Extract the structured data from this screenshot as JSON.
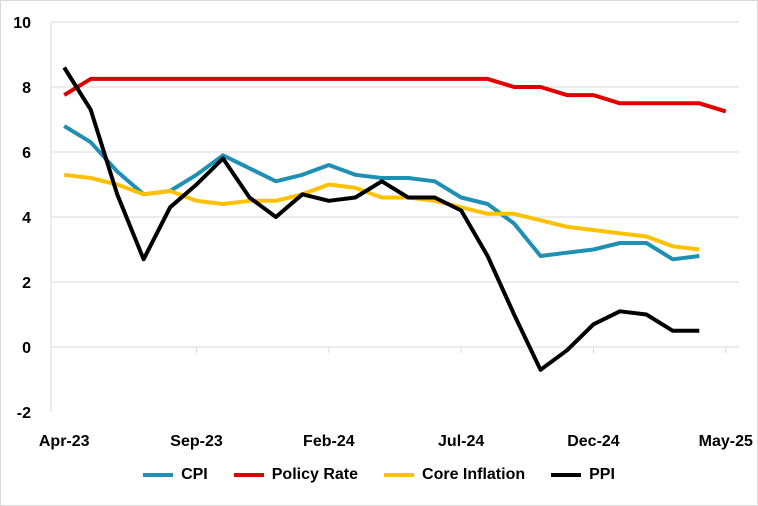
{
  "chart_data": {
    "type": "line",
    "title": "",
    "xlabel": "",
    "ylabel": "",
    "ylim": [
      -2,
      10
    ],
    "yticks": [
      -2,
      0,
      2,
      4,
      6,
      8,
      10
    ],
    "grid": true,
    "legend_position": "bottom",
    "x": [
      "Apr-23",
      "May-23",
      "Jun-23",
      "Jul-23",
      "Aug-23",
      "Sep-23",
      "Oct-23",
      "Nov-23",
      "Dec-23",
      "Jan-24",
      "Feb-24",
      "Mar-24",
      "Apr-24",
      "May-24",
      "Jun-24",
      "Jul-24",
      "Aug-24",
      "Sep-24",
      "Oct-24",
      "Nov-24",
      "Dec-24",
      "Jan-25",
      "Feb-25",
      "Mar-25",
      "Apr-25",
      "May-25"
    ],
    "x_tick_labels": [
      {
        "index": 0,
        "label": "Apr-23"
      },
      {
        "index": 5,
        "label": "Sep-23"
      },
      {
        "index": 10,
        "label": "Feb-24"
      },
      {
        "index": 15,
        "label": "Jul-24"
      },
      {
        "index": 20,
        "label": "Dec-24"
      },
      {
        "index": 25,
        "label": "May-25"
      }
    ],
    "series": [
      {
        "name": "CPI",
        "color": "#1f8fb4",
        "values": [
          6.8,
          6.3,
          5.4,
          4.7,
          4.8,
          5.3,
          5.9,
          5.5,
          5.1,
          5.3,
          5.6,
          5.3,
          5.2,
          5.2,
          5.1,
          4.6,
          4.4,
          3.8,
          2.8,
          2.9,
          3.0,
          3.2,
          3.2,
          2.7,
          2.8,
          null
        ]
      },
      {
        "name": "Policy Rate",
        "color": "#e00000",
        "values": [
          7.75,
          8.25,
          8.25,
          8.25,
          8.25,
          8.25,
          8.25,
          8.25,
          8.25,
          8.25,
          8.25,
          8.25,
          8.25,
          8.25,
          8.25,
          8.25,
          8.25,
          8.0,
          8.0,
          7.75,
          7.75,
          7.5,
          7.5,
          7.5,
          7.5,
          7.25
        ]
      },
      {
        "name": "Core Inflation",
        "color": "#ffc000",
        "values": [
          5.3,
          5.2,
          5.0,
          4.7,
          4.8,
          4.5,
          4.4,
          4.5,
          4.5,
          4.7,
          5.0,
          4.9,
          4.6,
          4.6,
          4.5,
          4.3,
          4.1,
          4.1,
          3.9,
          3.7,
          3.6,
          3.5,
          3.4,
          3.1,
          3.0,
          null
        ]
      },
      {
        "name": "PPI",
        "color": "#000000",
        "values": [
          8.6,
          7.3,
          4.7,
          2.7,
          4.3,
          5.0,
          5.8,
          4.6,
          4.0,
          4.7,
          4.5,
          4.6,
          5.1,
          4.6,
          4.6,
          4.2,
          2.8,
          1.0,
          -0.7,
          -0.1,
          0.7,
          1.1,
          1.0,
          0.5,
          0.5,
          null
        ]
      }
    ]
  }
}
